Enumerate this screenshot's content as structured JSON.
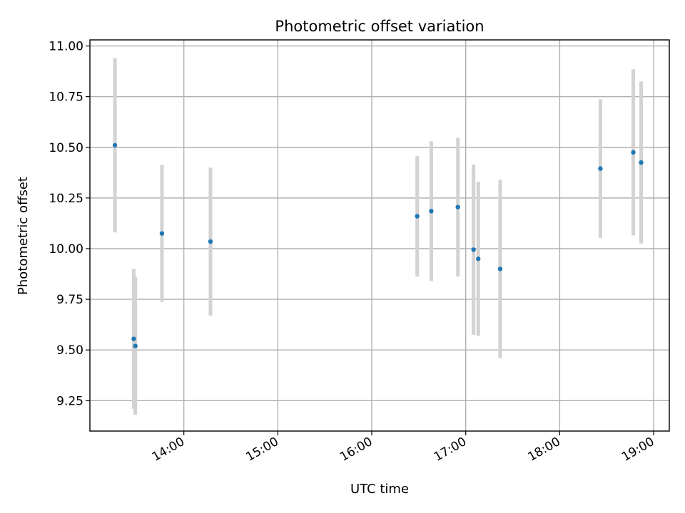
{
  "chart_data": {
    "type": "scatter",
    "title": "Photometric offset variation",
    "xlabel": "UTC time",
    "ylabel": "Photometric offset",
    "xlim": [
      "13:00",
      "19:10"
    ],
    "ylim": [
      9.1,
      11.03
    ],
    "x_ticks": [
      "14:00",
      "15:00",
      "16:00",
      "17:00",
      "18:00",
      "19:00"
    ],
    "y_ticks": [
      "9.25",
      "9.50",
      "9.75",
      "10.00",
      "10.25",
      "10.50",
      "10.75",
      "11.00"
    ],
    "grid": true,
    "colors": {
      "point": "#1f77b4",
      "error_bar": "#d3d3d3"
    },
    "series": [
      {
        "points": [
          {
            "time": "13:16",
            "y": 10.51,
            "err": 0.43
          },
          {
            "time": "13:28",
            "y": 9.555,
            "err": 0.345
          },
          {
            "time": "13:29",
            "y": 9.52,
            "err": 0.34
          },
          {
            "time": "13:46",
            "y": 10.075,
            "err": 0.338
          },
          {
            "time": "14:17",
            "y": 10.035,
            "err": 0.365
          },
          {
            "time": "16:29",
            "y": 10.16,
            "err": 0.298
          },
          {
            "time": "16:38",
            "y": 10.185,
            "err": 0.345
          },
          {
            "time": "16:55",
            "y": 10.205,
            "err": 0.342
          },
          {
            "time": "17:05",
            "y": 9.995,
            "err": 0.42
          },
          {
            "time": "17:08",
            "y": 9.95,
            "err": 0.38
          },
          {
            "time": "17:22",
            "y": 9.9,
            "err": 0.44
          },
          {
            "time": "18:26",
            "y": 10.395,
            "err": 0.342
          },
          {
            "time": "18:47",
            "y": 10.475,
            "err": 0.41
          },
          {
            "time": "18:52",
            "y": 10.425,
            "err": 0.4
          }
        ]
      }
    ]
  }
}
